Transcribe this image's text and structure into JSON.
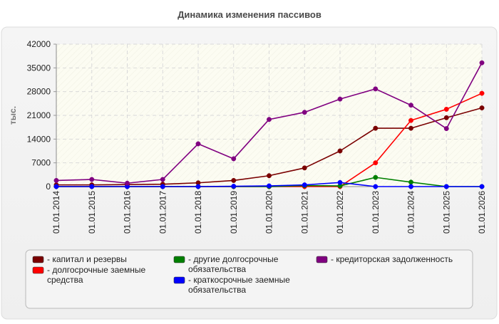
{
  "chart_data": {
    "type": "line",
    "title": "Динамика изменения пассивов",
    "ylabel": "тыс.",
    "xlabel": "",
    "ylim": [
      0,
      42000
    ],
    "yticks": [
      "0",
      "7000",
      "14000",
      "21000",
      "28000",
      "35000",
      "42000"
    ],
    "yticks_values": [
      0,
      7000,
      14000,
      21000,
      28000,
      35000,
      42000
    ],
    "categories": [
      "01.01.2014",
      "01.01.2015",
      "01.01.2016",
      "01.01.2017",
      "01.01.2018",
      "01.01.2019",
      "01.01.2020",
      "01.01.2021",
      "01.01.2022",
      "01.01.2023",
      "01.01.2024",
      "01.01.2025",
      "01.01.2026"
    ],
    "grid": true,
    "legend_position": "bottom",
    "series": [
      {
        "name": "капитал и резервы",
        "color": "#7a0000",
        "values": [
          500,
          500,
          600,
          700,
          1100,
          1800,
          3200,
          5500,
          10500,
          17200,
          17200,
          20300,
          23200
        ]
      },
      {
        "name": "долгосрочные заемные средства",
        "color": "#ff0000",
        "values": [
          0,
          0,
          0,
          0,
          0,
          0,
          0,
          0,
          0,
          7000,
          19500,
          22800,
          27500
        ]
      },
      {
        "name": "другие долгосрочные обязательства",
        "color": "#008000",
        "values": [
          0,
          0,
          0,
          0,
          0,
          0,
          0,
          300,
          200,
          2700,
          1300,
          0,
          0
        ]
      },
      {
        "name": "краткосрочные заемные обязательства",
        "color": "#0000ff",
        "values": [
          0,
          0,
          0,
          0,
          0,
          100,
          200,
          500,
          1200,
          0,
          0,
          0,
          0
        ]
      },
      {
        "name": "кредиторская задолженность",
        "color": "#800080",
        "values": [
          1800,
          2100,
          1000,
          2100,
          12600,
          8200,
          19800,
          21900,
          25800,
          28800,
          24000,
          17100,
          36500
        ]
      }
    ]
  }
}
